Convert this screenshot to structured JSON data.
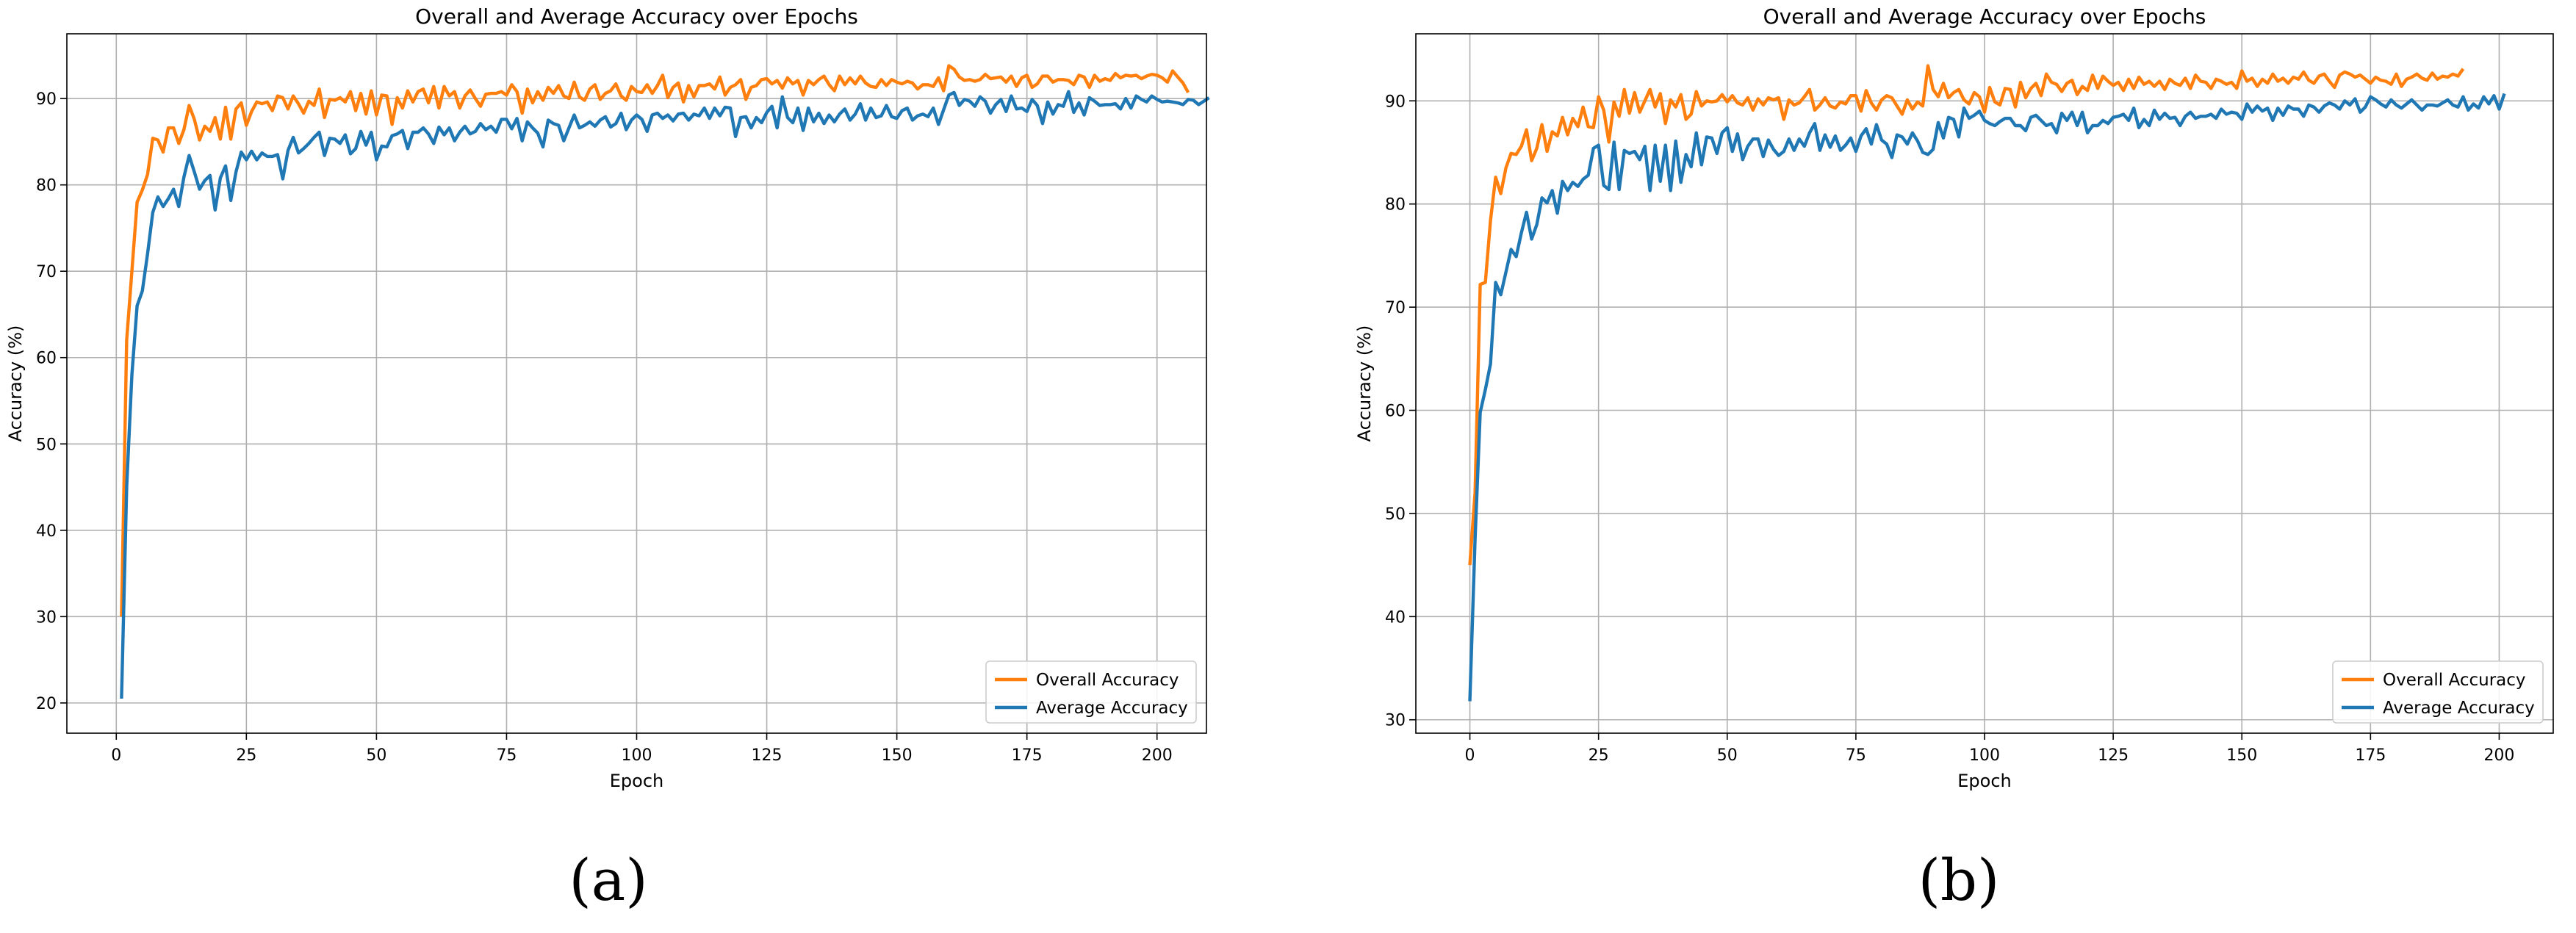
{
  "colors": {
    "overall": "#ff7f0e",
    "average": "#1f77b4",
    "grid": "#b0b0b0",
    "frame": "#000000"
  },
  "chart_data": [
    {
      "type": "line",
      "caption": "(a)",
      "title": "Overall and Average Accuracy over Epochs",
      "xlabel": "Epoch",
      "ylabel": "Accuracy (%)",
      "xlim": [
        -9.5,
        209.5
      ],
      "ylim": [
        16.5,
        97.5
      ],
      "xticks": [
        0,
        25,
        50,
        75,
        100,
        125,
        150,
        175,
        200
      ],
      "xtick_labels": [
        "0",
        "25",
        "50",
        "75",
        "100",
        "125",
        "150",
        "175",
        "200"
      ],
      "yticks": [
        20,
        30,
        40,
        50,
        60,
        70,
        80,
        90
      ],
      "ytick_labels": [
        "20",
        "30",
        "40",
        "50",
        "60",
        "70",
        "80",
        "90"
      ],
      "grid": true,
      "legend_position": "lower-right",
      "x_start": 1,
      "x_step": 1,
      "series": [
        {
          "name": "Overall Accuracy",
          "key": "overall",
          "values": [
            30,
            62,
            70,
            78,
            79.4,
            81.2,
            85.4,
            85.2,
            83.8,
            86.6,
            86.6,
            84.8,
            86.4,
            89.2,
            87.6,
            85.2,
            86.8,
            86.2,
            87.8,
            85.3,
            89,
            85.3,
            88.8,
            89.5,
            86.9,
            88.5,
            89.6,
            89.4,
            89.6,
            88.6,
            90.3,
            90.1,
            88.8,
            90.3,
            89.4,
            88.3,
            89.7,
            89.2,
            91.1,
            87.8,
            89.9,
            89.8,
            90.1,
            89.6,
            90.8,
            88.6,
            90.6,
            88.2,
            90.9,
            88.1,
            90.4,
            90.3,
            87,
            90.1,
            88.9,
            90.9,
            89.6,
            90.8,
            91.1,
            89.5,
            91.4,
            88.9,
            91.4,
            90.3,
            90.8,
            88.9,
            90.3,
            91,
            90,
            89.1,
            90.5,
            90.6,
            90.6,
            90.8,
            90.4,
            91.6,
            90.8,
            88.3,
            91.1,
            89.5,
            90.8,
            89.8,
            91.3,
            90.6,
            91.5,
            90.3,
            90,
            91.9,
            90.2,
            89.8,
            91.1,
            91.6,
            89.9,
            90.6,
            90.9,
            91.7,
            90.3,
            89.8,
            91.4,
            90.8,
            90.7,
            91.6,
            90.6,
            91.5,
            92.7,
            90.1,
            91.3,
            91.8,
            89.6,
            91.5,
            90.2,
            91.5,
            91.5,
            91.7,
            91.1,
            92.5,
            90.4,
            91.3,
            91.6,
            92.2,
            89.9,
            91.3,
            91.5,
            92.2,
            92.3,
            91.7,
            92.1,
            91.2,
            92.4,
            91.7,
            92.1,
            90.4,
            92.1,
            91.6,
            92.2,
            92.6,
            91.6,
            90.9,
            92.6,
            91.6,
            92.4,
            91.7,
            92.6,
            91.8,
            91.4,
            91.3,
            92.2,
            91.5,
            92.2,
            91.9,
            91.7,
            92,
            91.8,
            91.1,
            91.6,
            91.6,
            91.4,
            92.4,
            90.9,
            93.8,
            93.4,
            92.5,
            92.1,
            92.2,
            92,
            92.2,
            92.8,
            92.3,
            92.4,
            92.5,
            91.9,
            92.6,
            91.4,
            92.4,
            92.7,
            91.3,
            91.7,
            92.6,
            92.6,
            91.9,
            92.2,
            92.2,
            92.1,
            91.6,
            92.7,
            92.5,
            91.3,
            92.7,
            92,
            92.3,
            92.1,
            92.9,
            92.4,
            92.7,
            92.6,
            92.7,
            92.3,
            92.6,
            92.8,
            92.7,
            92.4,
            91.9,
            93.2,
            92.5,
            91.8,
            90.7
          ]
        },
        {
          "name": "Average Accuracy",
          "key": "average",
          "values": [
            20.5,
            45,
            58,
            66,
            67.7,
            72,
            76.8,
            78.6,
            77.5,
            78.4,
            79.5,
            77.5,
            80.9,
            83.4,
            81.5,
            79.5,
            80.5,
            81.1,
            77.1,
            80.8,
            82.2,
            78.2,
            81.5,
            83.8,
            82.9,
            83.9,
            82.9,
            83.7,
            83.3,
            83.3,
            83.5,
            80.7,
            84,
            85.5,
            83.7,
            84.2,
            84.8,
            85.5,
            86.1,
            83.4,
            85.4,
            85.3,
            84.8,
            85.8,
            83.6,
            84.2,
            86.2,
            84.6,
            86.1,
            82.9,
            84.5,
            84.4,
            85.7,
            85.9,
            86.3,
            84.2,
            86.1,
            86.1,
            86.6,
            85.9,
            84.8,
            86.7,
            85.8,
            86.6,
            85.1,
            86.1,
            86.8,
            85.9,
            86.2,
            87.1,
            86.4,
            86.8,
            86.1,
            87.6,
            87.6,
            86.5,
            87.7,
            85.1,
            87.3,
            86.6,
            86,
            84.4,
            87.5,
            87.1,
            86.9,
            85.1,
            86.6,
            88.1,
            86.6,
            86.9,
            87.3,
            86.8,
            87.5,
            87.9,
            86.7,
            87.1,
            88.3,
            86.4,
            87.5,
            88.1,
            87.6,
            86.2,
            88.1,
            88.3,
            87.7,
            88.1,
            87.4,
            88.2,
            88.3,
            87.5,
            88.2,
            88,
            88.9,
            87.7,
            88.9,
            88,
            89,
            88.9,
            85.6,
            87.8,
            87.9,
            86.6,
            87.8,
            87.2,
            88.4,
            89.1,
            86.6,
            90.2,
            87.8,
            87.2,
            88.9,
            86.3,
            88.9,
            87.3,
            88.3,
            87.1,
            88.1,
            87.3,
            88.2,
            88.8,
            87.5,
            88.2,
            89.4,
            87.5,
            88.9,
            87.8,
            88,
            89.2,
            87.9,
            87.7,
            88.6,
            88.9,
            87.5,
            88,
            88.2,
            87.9,
            88.9,
            87,
            88.7,
            90.4,
            90.7,
            89.2,
            89.9,
            89.7,
            89.1,
            90.2,
            89.7,
            88.3,
            89.3,
            89.9,
            88.5,
            90.3,
            88.8,
            88.9,
            88.5,
            89.9,
            89.2,
            87.1,
            89.6,
            88.2,
            89.3,
            89.1,
            90.8,
            88.4,
            89.5,
            88.1,
            90.1,
            89.7,
            89.2,
            89.3,
            89.3,
            89.4,
            88.8,
            90,
            88.9,
            90.3,
            89.9,
            89.6,
            90.3,
            89.9,
            89.6,
            89.7,
            89.6,
            89.5,
            89.3,
            89.9,
            89.8,
            89.3,
            89.7,
            90.1
          ]
        }
      ]
    },
    {
      "type": "line",
      "caption": "(b)",
      "title": "Overall and Average Accuracy over Epochs",
      "xlabel": "Epoch",
      "ylabel": "Accuracy (%)",
      "xlim": [
        -10.5,
        210.5
      ],
      "ylim": [
        28.7,
        96.5
      ],
      "xticks": [
        0,
        25,
        50,
        75,
        100,
        125,
        150,
        175,
        200
      ],
      "xtick_labels": [
        "0",
        "25",
        "50",
        "75",
        "100",
        "125",
        "150",
        "175",
        "200"
      ],
      "yticks": [
        30,
        40,
        50,
        60,
        70,
        80,
        90
      ],
      "ytick_labels": [
        "30",
        "40",
        "50",
        "60",
        "70",
        "80",
        "90"
      ],
      "grid": true,
      "legend_position": "lower-right",
      "x_start": 0,
      "x_step": 1,
      "series": [
        {
          "name": "Overall Accuracy",
          "key": "overall",
          "values": [
            45,
            52,
            72.2,
            72.4,
            78.4,
            82.6,
            81,
            83.5,
            84.9,
            84.8,
            85.6,
            87.2,
            84.2,
            85.4,
            87.7,
            85.1,
            87,
            86.6,
            88.4,
            86.7,
            88.3,
            87.5,
            89.4,
            87.5,
            87.4,
            90.4,
            89.1,
            86,
            89.9,
            88.5,
            91.1,
            88.8,
            90.8,
            88.9,
            90,
            91.1,
            89.4,
            90.7,
            87.8,
            90.1,
            89.4,
            90.6,
            88.2,
            88.7,
            90.9,
            89.5,
            90,
            89.9,
            90,
            90.6,
            89.9,
            90.5,
            89.8,
            89.6,
            90.3,
            89.1,
            90.2,
            89.6,
            90.3,
            90.1,
            90.3,
            88.2,
            90.1,
            89.6,
            89.8,
            90.4,
            91.1,
            89.1,
            89.6,
            90.3,
            89.5,
            89.3,
            89.9,
            89.7,
            90.5,
            90.5,
            89,
            91,
            89.8,
            89.1,
            90.1,
            90.5,
            90.3,
            89.5,
            88.7,
            90.1,
            89.2,
            89.9,
            89.5,
            93.4,
            91.1,
            90.4,
            91.7,
            90.3,
            90.8,
            91.1,
            90.1,
            89.7,
            90.8,
            90.4,
            88.9,
            91.3,
            89.9,
            89.6,
            91.2,
            91.1,
            89.4,
            91.8,
            90.3,
            91.2,
            91.7,
            90.5,
            92.6,
            91.8,
            91.6,
            90.9,
            91.7,
            92,
            90.6,
            91.4,
            91,
            92.5,
            91.2,
            92.4,
            91.9,
            91.5,
            91.8,
            91,
            92.1,
            91.2,
            92.3,
            91.6,
            91.9,
            91.4,
            91.9,
            91.1,
            92.1,
            91.7,
            91.5,
            92.2,
            91.2,
            92.5,
            91.9,
            91.8,
            91.2,
            92.1,
            91.9,
            91.6,
            91.8,
            91.2,
            92.9,
            91.9,
            92.2,
            91.4,
            92.1,
            91.7,
            92.6,
            91.9,
            92.2,
            91.7,
            92.3,
            92.1,
            92.8,
            92,
            91.7,
            92.4,
            92.6,
            91.9,
            91.3,
            92.5,
            92.8,
            92.6,
            92.3,
            92.5,
            92.1,
            91.7,
            92.3,
            92,
            91.9,
            91.6,
            92.6,
            91.4,
            92.1,
            92.3,
            92.6,
            92.2,
            92,
            92.7,
            92.1,
            92.4,
            92.3,
            92.6,
            92.4,
            93.1
          ]
        },
        {
          "name": "Average Accuracy",
          "key": "average",
          "values": [
            31.8,
            47.5,
            59.8,
            62,
            64.5,
            72.4,
            71.2,
            73.4,
            75.6,
            74.9,
            77.2,
            79.2,
            76.6,
            78,
            80.6,
            80.1,
            81.3,
            79.1,
            82.2,
            81.3,
            82.1,
            81.7,
            82.4,
            82.8,
            85.4,
            85.7,
            81.8,
            81.4,
            86,
            81.4,
            85.2,
            84.9,
            85.1,
            84.3,
            85.6,
            81.3,
            85.7,
            82.2,
            85.7,
            81.3,
            86.1,
            82.1,
            84.8,
            83.6,
            86.9,
            83.8,
            86.5,
            86.4,
            84.9,
            86.9,
            87.4,
            85.1,
            86.8,
            84.3,
            85.6,
            86.3,
            86.3,
            84.6,
            86.2,
            85.3,
            84.7,
            85.1,
            86.3,
            85.2,
            86.3,
            85.6,
            86.9,
            87.8,
            85.2,
            86.7,
            85.5,
            86.6,
            85.2,
            85.7,
            86.4,
            85.1,
            86.6,
            87.3,
            85.8,
            87.7,
            86.2,
            85.8,
            84.5,
            86.7,
            86.5,
            85.8,
            86.9,
            86.1,
            85,
            84.8,
            85.3,
            87.9,
            86.4,
            88.4,
            88.2,
            86.5,
            89.3,
            88.3,
            88.6,
            89,
            88.1,
            87.8,
            87.6,
            88,
            88.3,
            88.3,
            87.6,
            87.6,
            87.1,
            88.4,
            88.6,
            88.1,
            87.6,
            87.8,
            86.9,
            88.8,
            88.1,
            88.9,
            87.6,
            88.9,
            86.9,
            87.6,
            87.6,
            88.1,
            87.8,
            88.4,
            88.5,
            88.7,
            88.1,
            89.3,
            87.4,
            88.2,
            87.6,
            89.1,
            88.2,
            88.8,
            88.3,
            88.4,
            87.6,
            88.5,
            88.9,
            88.3,
            88.5,
            88.5,
            88.7,
            88.3,
            89.2,
            88.7,
            88.9,
            88.8,
            88.2,
            89.7,
            88.9,
            89.5,
            89,
            89.3,
            88.1,
            89.3,
            88.6,
            89.5,
            89.2,
            89.2,
            88.5,
            89.6,
            89.4,
            88.9,
            89.5,
            89.8,
            89.6,
            89.2,
            90,
            89.6,
            90.2,
            88.9,
            89.4,
            90.4,
            90.1,
            89.7,
            89.4,
            90.1,
            89.6,
            89.3,
            89.7,
            90.1,
            89.6,
            89.1,
            89.6,
            89.6,
            89.5,
            89.8,
            90.1,
            89.6,
            89.4,
            90.4,
            89.1,
            89.7,
            89.3,
            90.4,
            89.7,
            90.5,
            89.2,
            90.7
          ]
        }
      ]
    }
  ]
}
